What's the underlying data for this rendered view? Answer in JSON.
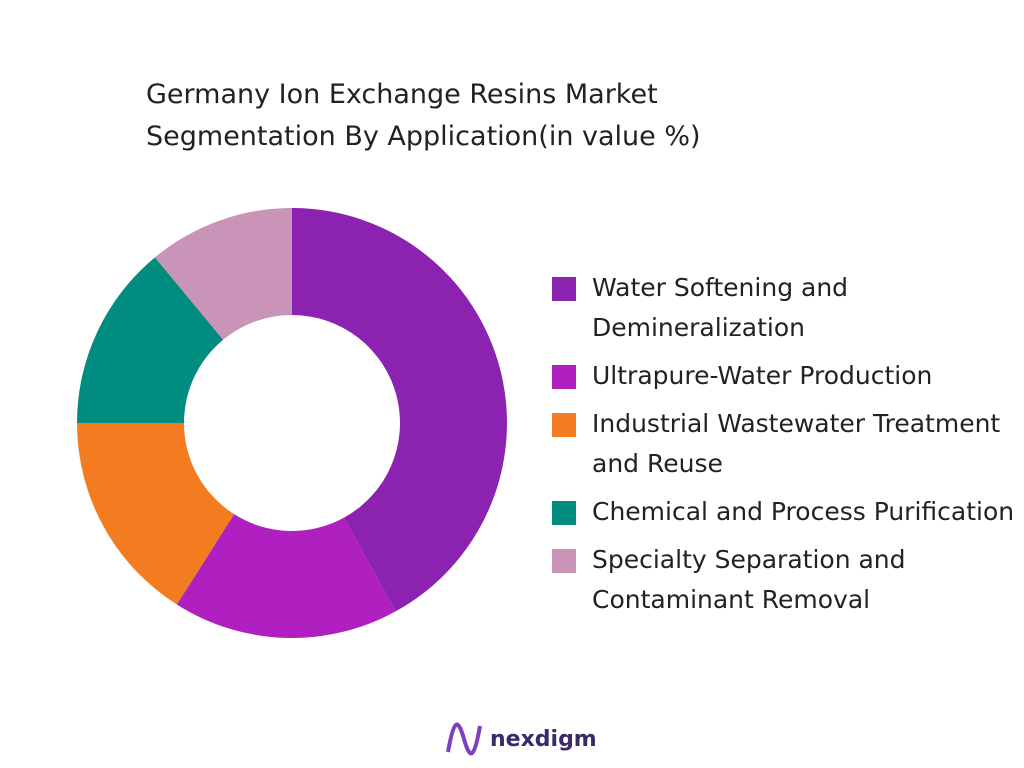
{
  "chart_data": {
    "type": "donut",
    "title": "Germany Ion Exchange Resins Market Segmentation By Application(in value %)",
    "categories": [
      "Water Softening and Demineralization",
      "Ultrapure-Water Production",
      "Industrial Wastewater Treatment and Reuse",
      "Chemical and Process Purification",
      "Specialty Separation and Contaminant Removal"
    ],
    "values": [
      42,
      17,
      16,
      14,
      11
    ],
    "colors": [
      "#8b22b0",
      "#b01fbf",
      "#f47c20",
      "#008c7e",
      "#c994b8"
    ],
    "legend": "right"
  },
  "footer": {
    "logo": "nexdigm"
  }
}
